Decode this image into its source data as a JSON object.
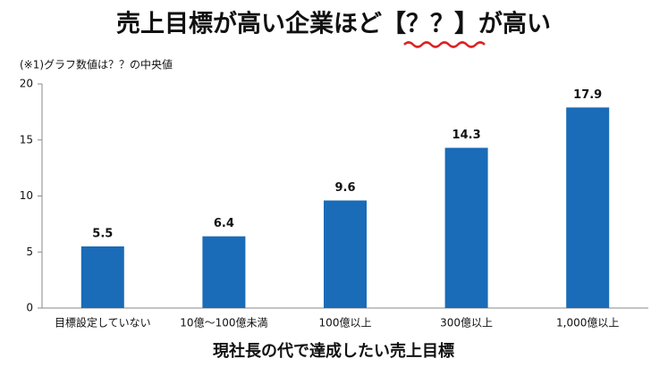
{
  "chart_data": {
    "type": "bar",
    "title": "売上目標が高い企業ほど【？？】が高い",
    "subtitle": "(※1)グラフ数値は？？の中央値",
    "x_label": "現社長の代で達成したい売上目標",
    "categories": [
      "目標設定していない",
      "10億～100億未満",
      "100億以上",
      "300億以上",
      "1,000億以上"
    ],
    "values": [
      5.5,
      6.4,
      9.6,
      14.3,
      17.9
    ],
    "color": "#1a6bb8",
    "ylim": [
      0,
      20
    ],
    "yticks": [
      0,
      5,
      10,
      15,
      20
    ],
    "grid": false
  }
}
